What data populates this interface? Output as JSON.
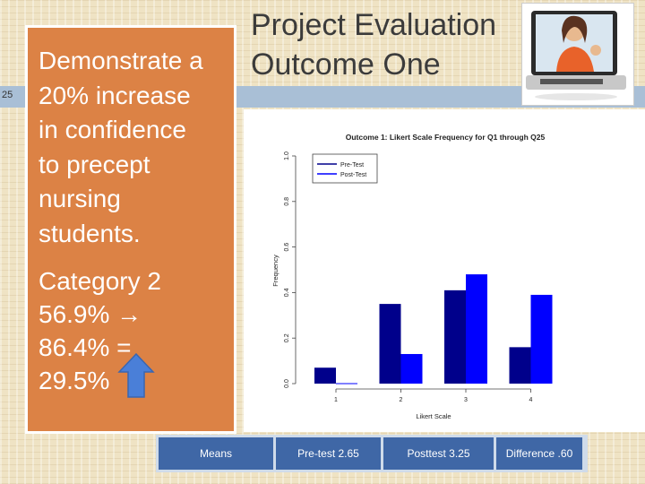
{
  "slide": {
    "number": "25",
    "title_line1": "Project Evaluation",
    "title_line2": "Outcome One"
  },
  "left_panel": {
    "lines": [
      "Demonstrate a",
      "20% increase",
      "in confidence",
      "to precept",
      "nursing",
      "students."
    ],
    "category_lines": [
      "Category 2",
      "56.9% →",
      "86.4% =",
      "29.5%"
    ]
  },
  "stats": {
    "means": "Means",
    "pretest": "Pre-test 2.65",
    "posttest": "Posttest  3.25",
    "difference": "Difference .60"
  },
  "colors": {
    "panel": "#dc8245",
    "band": "#a9bfd6",
    "stat_cell": "#3f67a6",
    "pre_test": "#00008b",
    "post_test": "#0000ff",
    "arrow": "#4a7fd8"
  },
  "chart_data": {
    "type": "bar",
    "title": "Outcome 1: Likert Scale Frequency for Q1 through Q25",
    "xlabel": "Likert Scale",
    "ylabel": "Frequency",
    "categories": [
      "1",
      "2",
      "3",
      "4"
    ],
    "ylim": [
      0,
      1.0
    ],
    "yticks": [
      "0.0",
      "0.2",
      "0.4",
      "0.6",
      "0.8",
      "1.0"
    ],
    "legend_position": "top-left",
    "series": [
      {
        "name": "Pre-Test",
        "values": [
          0.07,
          0.35,
          0.41,
          0.16
        ]
      },
      {
        "name": "Post-Test",
        "values": [
          0.0,
          0.13,
          0.48,
          0.39
        ]
      }
    ]
  }
}
